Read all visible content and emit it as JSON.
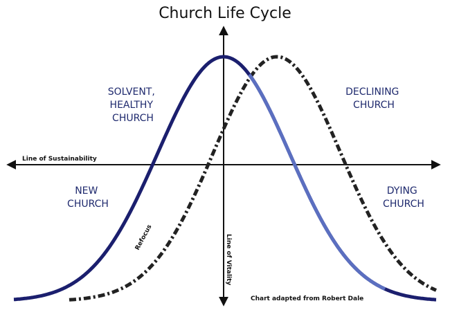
{
  "title": "Church Life Cycle",
  "quadrants": {
    "top_left": [
      "SOLVENT,",
      "HEALTHY",
      "CHURCH"
    ],
    "top_right": [
      "DECLINING",
      "CHURCH"
    ],
    "bottom_left": [
      "NEW",
      "CHURCH"
    ],
    "bottom_right": [
      "DYING",
      "CHURCH"
    ]
  },
  "axes": {
    "horizontal": "Line of Sustainability",
    "vertical": "Line of Vitality"
  },
  "curve_label": "Refocus",
  "credit": "Chart adapted from Robert Dale"
}
